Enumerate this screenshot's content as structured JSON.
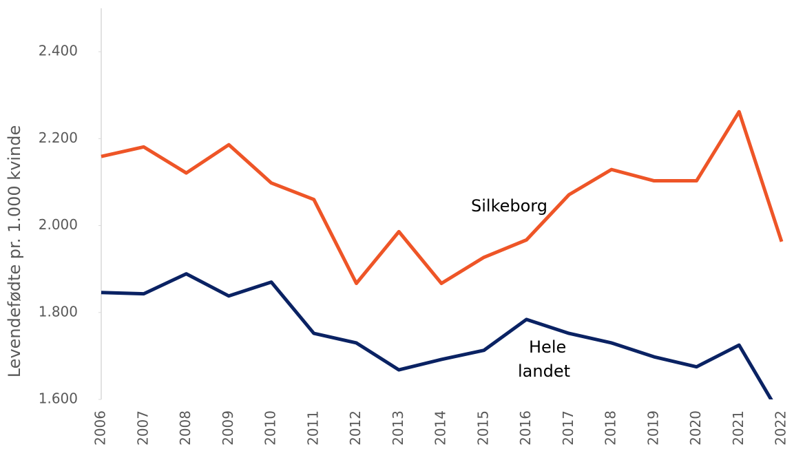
{
  "chart_data": {
    "type": "line",
    "ylabel": "Levendefødte pr. 1.000 kvinde",
    "categories": [
      "2006",
      "2007",
      "2008",
      "2009",
      "2010",
      "2011",
      "2012",
      "2013",
      "2014",
      "2015",
      "2016",
      "2017",
      "2018",
      "2019",
      "2020",
      "2021",
      "2022"
    ],
    "series": [
      {
        "name": "Silkeborg",
        "color": "#ee5527",
        "values": [
          2159,
          2181,
          2121,
          2186,
          2098,
          2060,
          1867,
          1986,
          1867,
          1927,
          1967,
          2071,
          2129,
          2103,
          2103,
          2262,
          1963
        ]
      },
      {
        "name": "Hele landet",
        "color": "#0a2263",
        "values": [
          1846,
          1843,
          1889,
          1838,
          1870,
          1752,
          1730,
          1668,
          1692,
          1713,
          1784,
          1752,
          1730,
          1698,
          1675,
          1725,
          1559
        ]
      }
    ],
    "annotations": [
      {
        "lines": [
          "Silkeborg"
        ]
      },
      {
        "lines": [
          "Hele",
          "landet"
        ]
      }
    ],
    "ylim": [
      1600,
      2500
    ],
    "yticks": [
      {
        "value": 1600,
        "label": "1.600"
      },
      {
        "value": 1800,
        "label": "1.800"
      },
      {
        "value": 2000,
        "label": "2.000"
      },
      {
        "value": 2200,
        "label": "2.200"
      },
      {
        "value": 2400,
        "label": "2.400"
      }
    ],
    "grid": false
  }
}
